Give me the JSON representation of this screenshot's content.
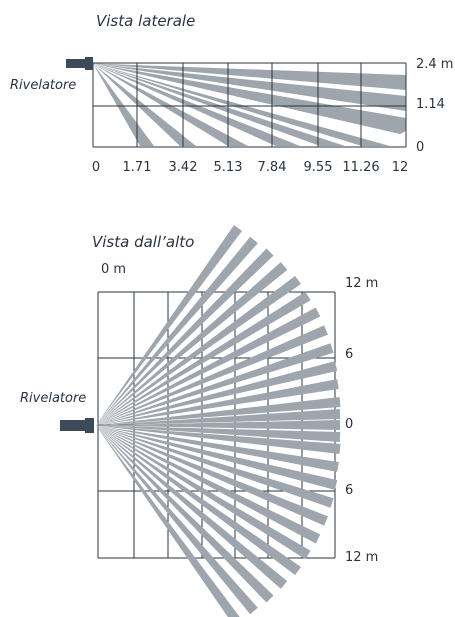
{
  "side_view": {
    "title": "Vista laterale",
    "detector_label": "Rivelatore",
    "x_ticks": [
      "0",
      "1.71",
      "3.42",
      "5.13",
      "7.84",
      "9.55",
      "11.26",
      "12"
    ],
    "y_ticks": [
      "2.4 m",
      "1.14",
      "0"
    ]
  },
  "top_view": {
    "title": "Vista dall’alto",
    "detector_label": "Rivelatore",
    "top_left_label": "0 m",
    "right_ticks": [
      "12 m",
      "6",
      "0",
      "6",
      "12 m"
    ]
  },
  "colors": {
    "beam": "#9ea5ad",
    "grid": "#2a3440",
    "detector": "#3c4a5a"
  }
}
